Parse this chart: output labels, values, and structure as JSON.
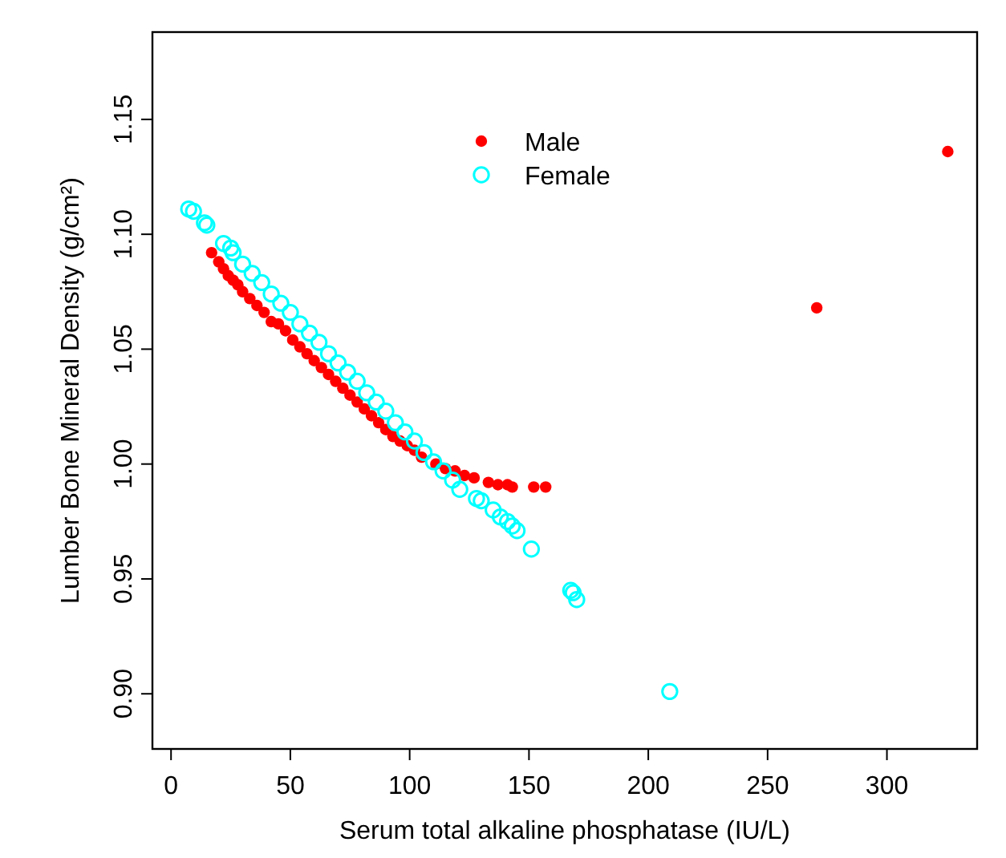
{
  "chart_data": {
    "type": "scatter",
    "xlabel": "Serum total alkaline phosphatase (IU/L)",
    "ylabel": "Lumber Bone Mineral Density (g/cm²)",
    "xlim": [
      -7.8,
      337.8
    ],
    "ylim": [
      0.876,
      1.188
    ],
    "xticks": [
      0,
      50,
      100,
      150,
      200,
      250,
      300
    ],
    "yticks": [
      {
        "value": 0.9,
        "label": "0.90"
      },
      {
        "value": 0.95,
        "label": "0.95"
      },
      {
        "value": 1.0,
        "label": "1.00"
      },
      {
        "value": 1.05,
        "label": "1.05"
      },
      {
        "value": 1.1,
        "label": "1.10"
      },
      {
        "value": 1.15,
        "label": "1.15"
      }
    ],
    "grid": false,
    "legend": "top",
    "series": [
      {
        "name": "Male",
        "color": "#ff0000",
        "marker": "circle",
        "x": [
          17,
          20,
          22,
          24,
          26,
          28,
          30,
          33,
          36,
          39,
          42,
          45,
          48,
          51,
          54,
          57,
          60,
          63,
          66,
          69,
          72,
          75,
          78,
          81,
          84,
          87,
          90,
          93,
          96,
          99,
          102,
          105,
          111,
          115,
          119,
          123,
          127,
          133,
          137,
          141,
          143,
          152,
          157,
          270.6,
          325.5
        ],
        "values": [
          1.092,
          1.088,
          1.085,
          1.082,
          1.08,
          1.078,
          1.075,
          1.072,
          1.069,
          1.066,
          1.062,
          1.061,
          1.058,
          1.054,
          1.051,
          1.048,
          1.045,
          1.042,
          1.039,
          1.036,
          1.033,
          1.03,
          1.027,
          1.024,
          1.021,
          1.018,
          1.015,
          1.012,
          1.01,
          1.008,
          1.006,
          1.003,
          1.0,
          0.998,
          0.997,
          0.995,
          0.994,
          0.992,
          0.991,
          0.991,
          0.99,
          0.99,
          0.99,
          1.068,
          1.136
        ]
      },
      {
        "name": "Female",
        "color": "#00ffff",
        "marker": "open circle",
        "x": [
          7.4,
          9.4,
          14,
          15,
          22,
          25,
          26,
          30,
          34,
          38,
          42,
          46,
          50,
          54,
          58,
          62,
          66,
          70,
          74,
          78,
          82,
          86,
          90,
          94,
          98,
          102,
          106,
          110,
          114,
          118,
          121,
          128,
          130,
          135,
          138,
          141,
          143,
          145,
          151,
          167.5,
          168.5,
          170,
          209
        ],
        "values": [
          1.111,
          1.11,
          1.105,
          1.104,
          1.096,
          1.094,
          1.092,
          1.087,
          1.083,
          1.079,
          1.074,
          1.07,
          1.066,
          1.061,
          1.057,
          1.053,
          1.048,
          1.044,
          1.04,
          1.036,
          1.031,
          1.027,
          1.023,
          1.018,
          1.014,
          1.01,
          1.005,
          1.001,
          0.997,
          0.993,
          0.989,
          0.985,
          0.984,
          0.98,
          0.977,
          0.975,
          0.973,
          0.971,
          0.963,
          0.945,
          0.944,
          0.941,
          0.901
        ]
      }
    ]
  }
}
